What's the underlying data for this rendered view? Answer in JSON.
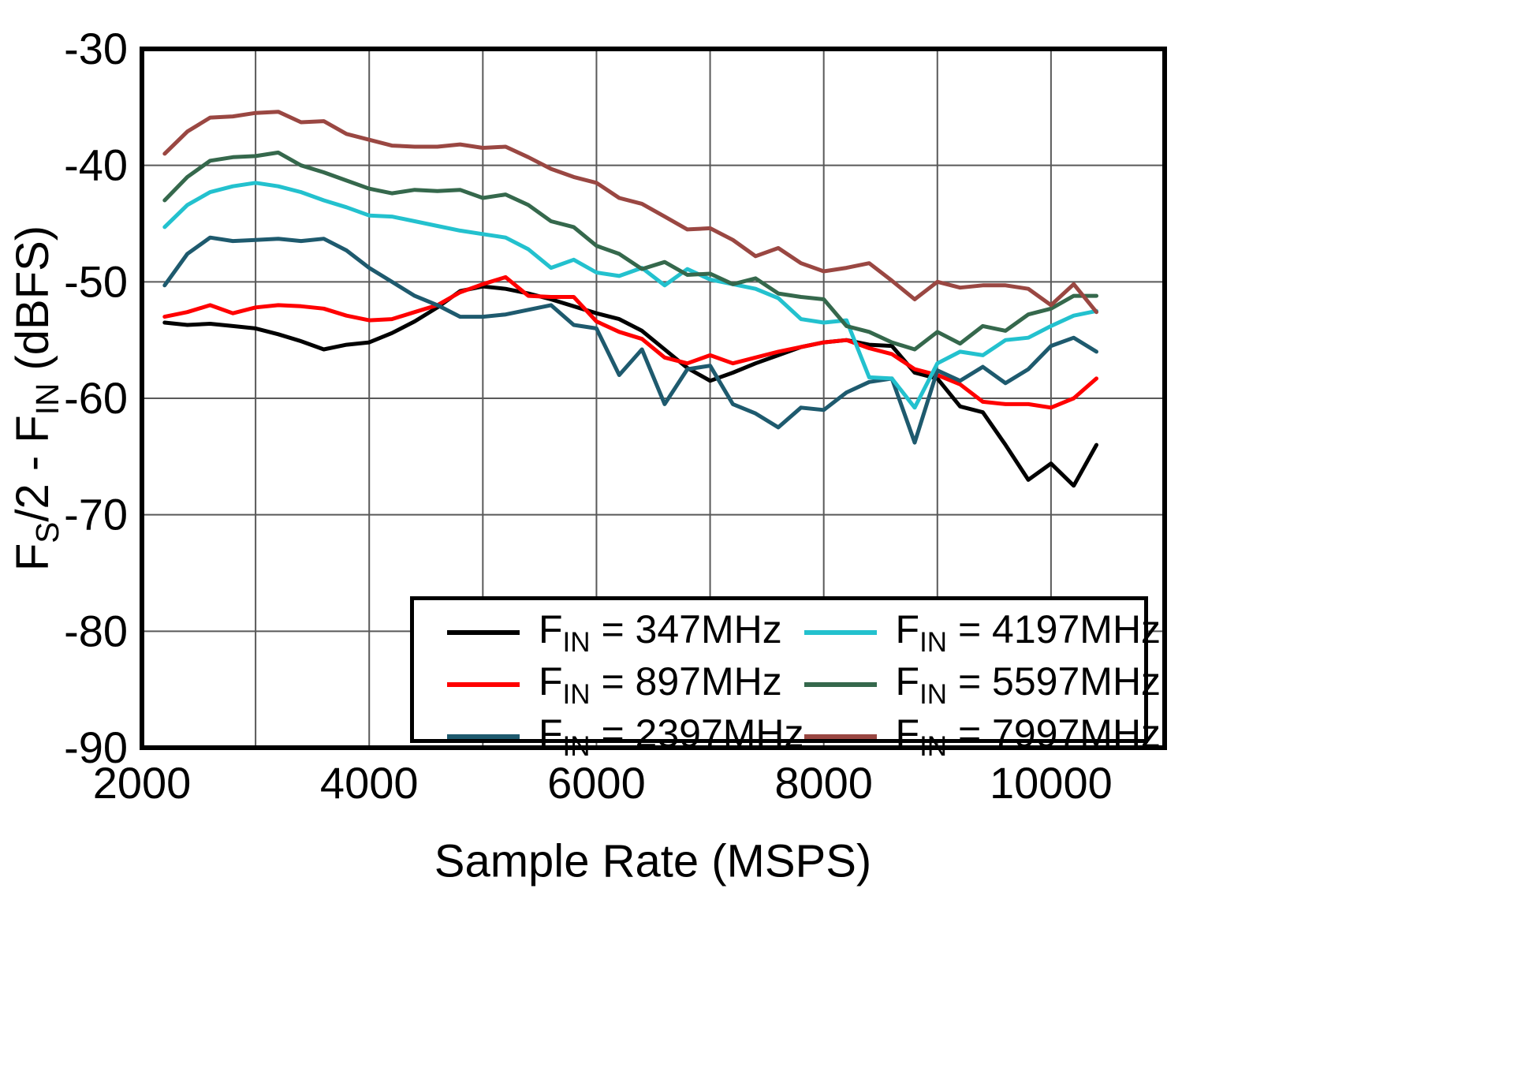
{
  "axes": {
    "x_title": "Sample Rate  (MSPS)",
    "y_title_parts": {
      "p1": "F",
      "sub1": "S",
      "p2": "/2 - F",
      "sub2": "IN",
      "p3": "  (dBFS)"
    }
  },
  "chart_data": {
    "type": "line",
    "title": "",
    "xlabel": "Sample Rate (MSPS)",
    "ylabel": "FS/2 - FIN (dBFS)",
    "xlim": [
      2000,
      11000
    ],
    "ylim": [
      -90,
      -30
    ],
    "x_grid_step": 1000,
    "y_grid_step": 10,
    "grid": true,
    "grid_color": "#595959",
    "legend_position": "inside-bottom-right",
    "x_ticks": [
      {
        "value": 2000,
        "label": "2000"
      },
      {
        "value": 4000,
        "label": "4000"
      },
      {
        "value": 6000,
        "label": "6000"
      },
      {
        "value": 8000,
        "label": "8000"
      },
      {
        "value": 10000,
        "label": "10000"
      }
    ],
    "y_ticks": [
      {
        "value": -30,
        "label": "-30"
      },
      {
        "value": -40,
        "label": "-40"
      },
      {
        "value": -50,
        "label": "-50"
      },
      {
        "value": -60,
        "label": "-60"
      },
      {
        "value": -70,
        "label": "-70"
      },
      {
        "value": -80,
        "label": "-80"
      },
      {
        "value": -90,
        "label": "-90"
      }
    ],
    "x": [
      2200,
      2400,
      2600,
      2800,
      3000,
      3200,
      3400,
      3600,
      3800,
      4000,
      4200,
      4400,
      4600,
      4800,
      5000,
      5200,
      5400,
      5600,
      5800,
      6000,
      6200,
      6400,
      6600,
      6800,
      7000,
      7200,
      7400,
      7600,
      7800,
      8000,
      8200,
      8400,
      8600,
      8800,
      9000,
      9200,
      9400,
      9600,
      9800,
      10000,
      10200,
      10400
    ],
    "series": [
      {
        "id": "fin-347",
        "name": "FIN = 347MHz",
        "legend": {
          "pre": "F",
          "sub": "IN",
          "post": " = 347MHz"
        },
        "color": "#000000",
        "values": [
          -53.5,
          -53.7,
          -53.6,
          -53.8,
          -54.0,
          -54.5,
          -55.1,
          -55.8,
          -55.4,
          -55.2,
          -54.4,
          -53.4,
          -52.2,
          -50.8,
          -50.4,
          -50.6,
          -51.0,
          -51.5,
          -52.1,
          -52.7,
          -53.2,
          -54.2,
          -55.8,
          -57.4,
          -58.5,
          -57.8,
          -57.0,
          -56.3,
          -55.6,
          -55.2,
          -55.0,
          -55.4,
          -55.5,
          -57.8,
          -58.3,
          -60.7,
          -61.2,
          -64.0,
          -67.0,
          -65.6,
          -67.5,
          -64.0
        ]
      },
      {
        "id": "fin-897",
        "name": "FIN = 897MHz",
        "legend": {
          "pre": "F",
          "sub": "IN",
          "post": " = 897MHz"
        },
        "color": "#FF0000",
        "values": [
          -53.0,
          -52.6,
          -52.0,
          -52.7,
          -52.2,
          -52.0,
          -52.1,
          -52.3,
          -52.9,
          -53.3,
          -53.2,
          -52.6,
          -52.0,
          -50.9,
          -50.2,
          -49.6,
          -51.2,
          -51.3,
          -51.3,
          -53.4,
          -54.3,
          -54.9,
          -56.5,
          -57.0,
          -56.3,
          -57.0,
          -56.5,
          -56.0,
          -55.6,
          -55.2,
          -55.0,
          -55.7,
          -56.2,
          -57.5,
          -58.0,
          -58.8,
          -60.3,
          -60.5,
          -60.5,
          -60.8,
          -60.0,
          -58.3
        ]
      },
      {
        "id": "fin-2397",
        "name": "FIN = 2397MHz",
        "legend": {
          "pre": "F",
          "sub": "IN",
          "post": " = 2397MHz"
        },
        "color": "#1E5A6E",
        "values": [
          -50.3,
          -47.6,
          -46.2,
          -46.5,
          -46.4,
          -46.3,
          -46.5,
          -46.3,
          -47.3,
          -48.8,
          -50.0,
          -51.2,
          -52.0,
          -53.0,
          -53.0,
          -52.8,
          -52.4,
          -52.0,
          -53.7,
          -54.0,
          -58.0,
          -55.8,
          -60.5,
          -57.5,
          -57.2,
          -60.5,
          -61.3,
          -62.5,
          -60.8,
          -61.0,
          -59.5,
          -58.6,
          -58.3,
          -63.8,
          -57.6,
          -58.5,
          -57.3,
          -58.7,
          -57.5,
          -55.5,
          -54.8,
          -56.0
        ]
      },
      {
        "id": "fin-4197",
        "name": "FIN = 4197MHz",
        "legend": {
          "pre": "F",
          "sub": "IN",
          "post": " = 4197MHz"
        },
        "color": "#23C1CE",
        "values": [
          -45.3,
          -43.4,
          -42.3,
          -41.8,
          -41.5,
          -41.8,
          -42.3,
          -43.0,
          -43.6,
          -44.3,
          -44.4,
          -44.8,
          -45.2,
          -45.6,
          -45.9,
          -46.2,
          -47.2,
          -48.8,
          -48.1,
          -49.2,
          -49.5,
          -48.8,
          -50.3,
          -48.9,
          -49.8,
          -50.2,
          -50.6,
          -51.4,
          -53.2,
          -53.5,
          -53.3,
          -58.2,
          -58.3,
          -60.8,
          -57.0,
          -56.0,
          -56.3,
          -55.0,
          -54.8,
          -53.8,
          -52.9,
          -52.5
        ]
      },
      {
        "id": "fin-5597",
        "name": "FIN = 5597MHz",
        "legend": {
          "pre": "F",
          "sub": "IN",
          "post": " = 5597MHz"
        },
        "color": "#35684C",
        "values": [
          -43.0,
          -41.0,
          -39.6,
          -39.3,
          -39.2,
          -38.9,
          -40.0,
          -40.6,
          -41.3,
          -42.0,
          -42.4,
          -42.1,
          -42.2,
          -42.1,
          -42.8,
          -42.5,
          -43.4,
          -44.8,
          -45.3,
          -46.9,
          -47.6,
          -48.9,
          -48.3,
          -49.4,
          -49.3,
          -50.2,
          -49.7,
          -51.0,
          -51.3,
          -51.5,
          -53.8,
          -54.3,
          -55.2,
          -55.8,
          -54.3,
          -55.3,
          -53.8,
          -54.2,
          -52.8,
          -52.3,
          -51.2,
          -51.2
        ]
      },
      {
        "id": "fin-7997",
        "name": "FIN = 7997MHz",
        "legend": {
          "pre": "F",
          "sub": "IN",
          "post": " = 7997MHz"
        },
        "color": "#9A4742",
        "values": [
          -39.0,
          -37.1,
          -35.9,
          -35.8,
          -35.5,
          -35.4,
          -36.3,
          -36.2,
          -37.3,
          -37.8,
          -38.3,
          -38.4,
          -38.4,
          -38.2,
          -38.5,
          -38.4,
          -39.3,
          -40.3,
          -41.0,
          -41.5,
          -42.8,
          -43.3,
          -44.4,
          -45.5,
          -45.4,
          -46.4,
          -47.8,
          -47.1,
          -48.4,
          -49.1,
          -48.8,
          -48.4,
          -49.9,
          -51.5,
          -50.0,
          -50.5,
          -50.3,
          -50.3,
          -50.6,
          -52.0,
          -50.2,
          -52.6
        ]
      }
    ]
  }
}
